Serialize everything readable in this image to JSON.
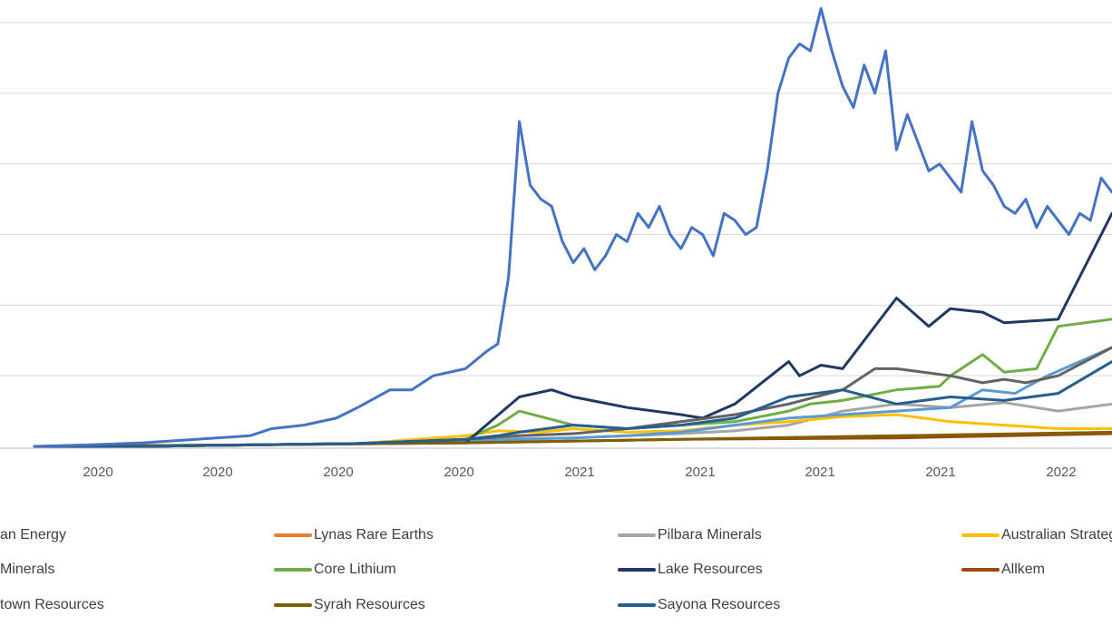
{
  "chart_data": {
    "type": "line",
    "title": "",
    "xlabel": "",
    "ylabel": "",
    "x_tick_labels": [
      "2020",
      "2020",
      "2020",
      "2020",
      "2021",
      "2021",
      "2021",
      "2021",
      "2022"
    ],
    "grid": "horizontal",
    "legend_position": "bottom",
    "note": "y-axis tick labels are cropped out of the image; values are relative (0 = baseline, 6 = top gridline)",
    "series": [
      {
        "name": "Vulcan Energy",
        "label_visible": "an Energy",
        "color": "#4472c4",
        "visible": "legend-only"
      },
      {
        "name": "Lynas Rare Earths",
        "label_visible": "Lynas Rare Earths",
        "color": "#ed7d31",
        "visible": "legend-only"
      },
      {
        "name": "Pilbara Minerals",
        "label_visible": "Pilbara Minerals",
        "color": "#a5a5a5",
        "x": [
          0,
          10,
          20,
          30,
          40,
          50,
          60,
          65,
          70,
          75,
          80,
          85,
          90,
          95,
          100
        ],
        "y": [
          0.0,
          0.0,
          0.02,
          0.04,
          0.1,
          0.12,
          0.18,
          0.22,
          0.3,
          0.5,
          0.6,
          0.55,
          0.62,
          0.5,
          0.6
        ]
      },
      {
        "name": "Australian Strategic Materials",
        "label_visible": "Australian Strateg",
        "color": "#ffc000",
        "x": [
          0,
          10,
          20,
          30,
          40,
          43,
          47,
          50,
          55,
          60,
          65,
          70,
          75,
          80,
          85,
          90,
          95,
          100
        ],
        "y": [
          0.0,
          0.0,
          0.02,
          0.04,
          0.15,
          0.22,
          0.2,
          0.25,
          0.2,
          0.22,
          0.3,
          0.35,
          0.42,
          0.45,
          0.35,
          0.3,
          0.25,
          0.25
        ]
      },
      {
        "name": "Liontown Resources Minerals",
        "label_visible": "Minerals",
        "color": "#5b9bd5",
        "x": [
          0,
          10,
          20,
          30,
          40,
          45,
          50,
          55,
          60,
          65,
          70,
          75,
          80,
          85,
          88,
          91,
          94,
          97,
          100
        ],
        "y": [
          0.0,
          0.0,
          0.02,
          0.04,
          0.08,
          0.1,
          0.12,
          0.15,
          0.2,
          0.3,
          0.4,
          0.45,
          0.5,
          0.55,
          0.8,
          0.75,
          1.0,
          1.2,
          1.4
        ]
      },
      {
        "name": "Core Lithium",
        "label_visible": "Core Lithium",
        "color": "#70ad47",
        "x": [
          0,
          10,
          20,
          30,
          40,
          43,
          45,
          50,
          55,
          60,
          65,
          70,
          72,
          75,
          80,
          84,
          85,
          88,
          90,
          93,
          95,
          100
        ],
        "y": [
          0.0,
          0.0,
          0.02,
          0.04,
          0.1,
          0.3,
          0.5,
          0.3,
          0.25,
          0.3,
          0.35,
          0.5,
          0.6,
          0.65,
          0.8,
          0.85,
          1.0,
          1.3,
          1.05,
          1.1,
          1.7,
          1.8
        ]
      },
      {
        "name": "Lake Resources",
        "label_visible": "Lake Resources",
        "color": "#203864",
        "x": [
          0,
          10,
          20,
          30,
          40,
          45,
          48,
          50,
          55,
          60,
          62,
          65,
          70,
          71,
          73,
          75,
          80,
          83,
          85,
          88,
          90,
          95,
          100
        ],
        "y": [
          0.0,
          0.0,
          0.02,
          0.04,
          0.05,
          0.7,
          0.8,
          0.7,
          0.55,
          0.45,
          0.4,
          0.6,
          1.2,
          1.0,
          1.15,
          1.1,
          2.1,
          1.7,
          1.95,
          1.9,
          1.75,
          1.8,
          3.3
        ]
      },
      {
        "name": "Allkem",
        "label_visible": "Allkem",
        "color": "#9e480e",
        "x": [
          0,
          20,
          40,
          60,
          80,
          100
        ],
        "y": [
          0.0,
          0.02,
          0.05,
          0.1,
          0.12,
          0.18
        ]
      },
      {
        "name": "Liontown Resources",
        "label_visible": "town Resources",
        "color": "#636363",
        "x": [
          0,
          10,
          20,
          30,
          40,
          45,
          50,
          55,
          60,
          65,
          70,
          75,
          78,
          80,
          85,
          88,
          90,
          92,
          95,
          100
        ],
        "y": [
          0.0,
          0.0,
          0.02,
          0.04,
          0.1,
          0.15,
          0.18,
          0.25,
          0.35,
          0.45,
          0.6,
          0.8,
          1.1,
          1.1,
          1.0,
          0.9,
          0.95,
          0.9,
          1.0,
          1.4
        ]
      },
      {
        "name": "Syrah Resources",
        "label_visible": "Syrah Resources",
        "color": "#806000",
        "x": [
          0,
          20,
          40,
          60,
          80,
          100
        ],
        "y": [
          0.0,
          0.02,
          0.05,
          0.1,
          0.15,
          0.2
        ]
      },
      {
        "name": "Sayona Resources",
        "label_visible": "Sayona Resources",
        "color": "#255e91",
        "x": [
          0,
          10,
          20,
          30,
          40,
          43,
          45,
          50,
          55,
          60,
          65,
          70,
          75,
          80,
          85,
          90,
          95,
          100
        ],
        "y": [
          0.0,
          0.0,
          0.02,
          0.04,
          0.1,
          0.15,
          0.2,
          0.3,
          0.25,
          0.3,
          0.4,
          0.7,
          0.8,
          0.6,
          0.7,
          0.65,
          0.75,
          1.2
        ]
      },
      {
        "name": "Vulcan Energy (main)",
        "label_visible": "",
        "color": "#4472c4",
        "x": [
          0,
          5,
          10,
          15,
          20,
          22,
          25,
          28,
          30,
          33,
          35,
          37,
          40,
          42,
          43,
          44,
          45,
          46,
          47,
          48,
          49,
          50,
          51,
          52,
          53,
          54,
          55,
          56,
          57,
          58,
          59,
          60,
          61,
          62,
          63,
          64,
          65,
          66,
          67,
          68,
          69,
          70,
          71,
          72,
          73,
          74,
          75,
          76,
          77,
          78,
          79,
          80,
          81,
          82,
          83,
          84,
          85,
          86,
          87,
          88,
          89,
          90,
          91,
          92,
          93,
          94,
          95,
          96,
          97,
          98,
          99,
          100
        ],
        "y": [
          0.0,
          0.02,
          0.05,
          0.1,
          0.15,
          0.25,
          0.3,
          0.4,
          0.55,
          0.8,
          0.8,
          1.0,
          1.1,
          1.35,
          1.45,
          2.4,
          4.6,
          3.7,
          3.5,
          3.4,
          2.9,
          2.6,
          2.8,
          2.5,
          2.7,
          3.0,
          2.9,
          3.3,
          3.1,
          3.4,
          3.0,
          2.8,
          3.1,
          3.0,
          2.7,
          3.3,
          3.2,
          3.0,
          3.1,
          3.9,
          5.0,
          5.5,
          5.7,
          5.6,
          6.2,
          5.6,
          5.1,
          4.8,
          5.4,
          5.0,
          5.6,
          4.2,
          4.7,
          4.3,
          3.9,
          4.0,
          3.8,
          3.6,
          4.6,
          3.9,
          3.7,
          3.4,
          3.3,
          3.5,
          3.1,
          3.4,
          3.2,
          3.0,
          3.3,
          3.2,
          3.8,
          3.6
        ]
      }
    ]
  },
  "legend": {
    "items": [
      {
        "label": "an Energy",
        "color": "#4472c4"
      },
      {
        "label": "Lynas Rare Earths",
        "color": "#ed7d31"
      },
      {
        "label": "Pilbara Minerals",
        "color": "#a5a5a5"
      },
      {
        "label": "Australian Strateg",
        "color": "#ffc000"
      },
      {
        "label": "Minerals",
        "color": "#5b9bd5"
      },
      {
        "label": "Core Lithium",
        "color": "#70ad47"
      },
      {
        "label": "Lake Resources",
        "color": "#203864"
      },
      {
        "label": "Allkem",
        "color": "#9e480e"
      },
      {
        "label": "town Resources",
        "color": "#636363"
      },
      {
        "label": "Syrah Resources",
        "color": "#806000"
      },
      {
        "label": "Sayona Resources",
        "color": "#255e91"
      }
    ]
  }
}
